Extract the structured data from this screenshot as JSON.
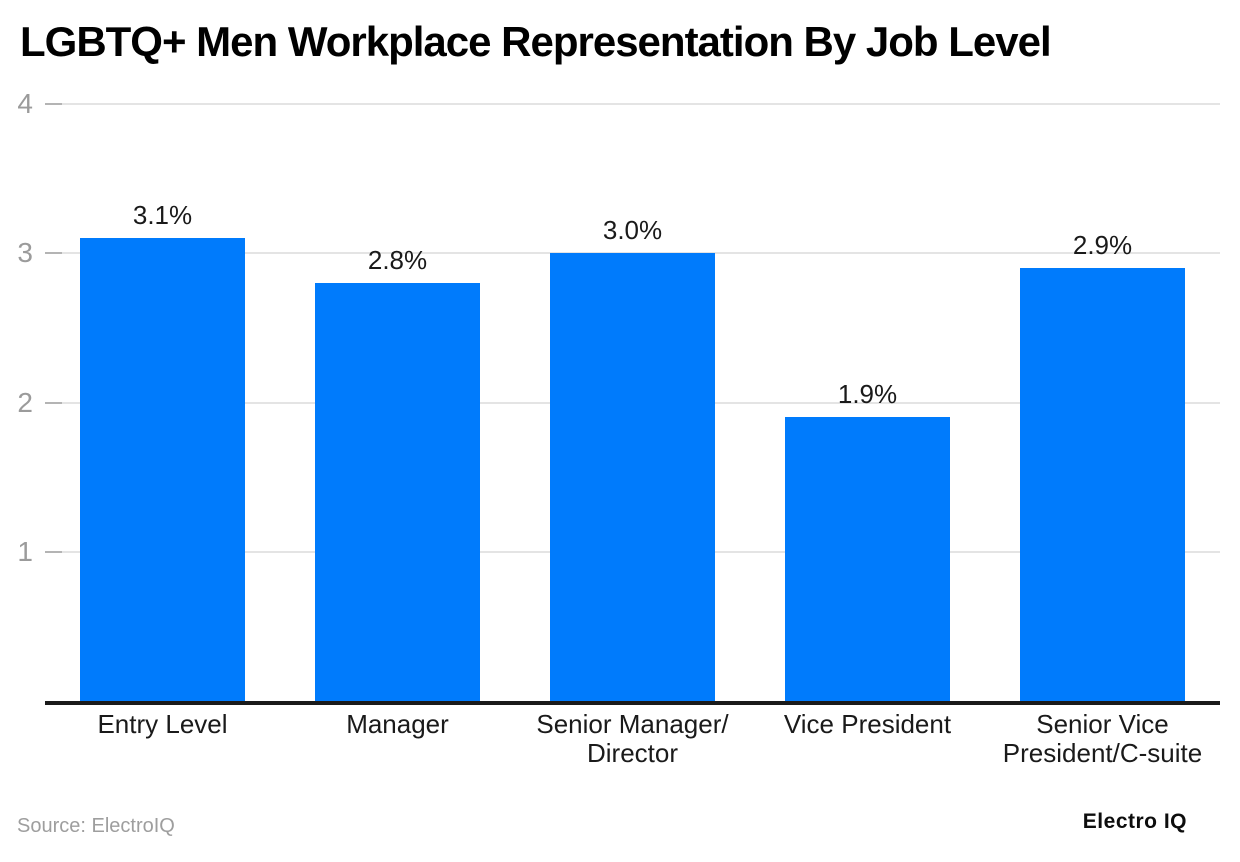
{
  "chart_data": {
    "type": "bar",
    "title": "LGBTQ+ Men Workplace Representation By Job Level",
    "categories": [
      "Entry Level",
      "Manager",
      "Senior Manager/\nDirector",
      "Vice President",
      "Senior Vice\nPresident/C-suite"
    ],
    "values": [
      3.1,
      2.8,
      3.0,
      1.9,
      2.9
    ],
    "value_labels": [
      "3.1%",
      "2.8%",
      "3.0%",
      "1.9%",
      "2.9%"
    ],
    "unit": "%",
    "y_ticks": [
      1,
      2,
      3,
      4
    ],
    "ylim": [
      0,
      4
    ],
    "grid": true,
    "legend": false,
    "xlabel": "",
    "ylabel": ""
  },
  "colors": {
    "bar": "#007bfc",
    "axis_line": "#1a1a1a",
    "gridline": "#e4e4e4",
    "tick_mark": "#b4b4b4",
    "y_tick_label": "#9b9b9b",
    "label_text": "#1a1a1a",
    "source_text": "#9e9e9e",
    "background": "#ffffff"
  },
  "footer": {
    "source": "Source: ElectroIQ",
    "brand": "Electro IQ"
  }
}
